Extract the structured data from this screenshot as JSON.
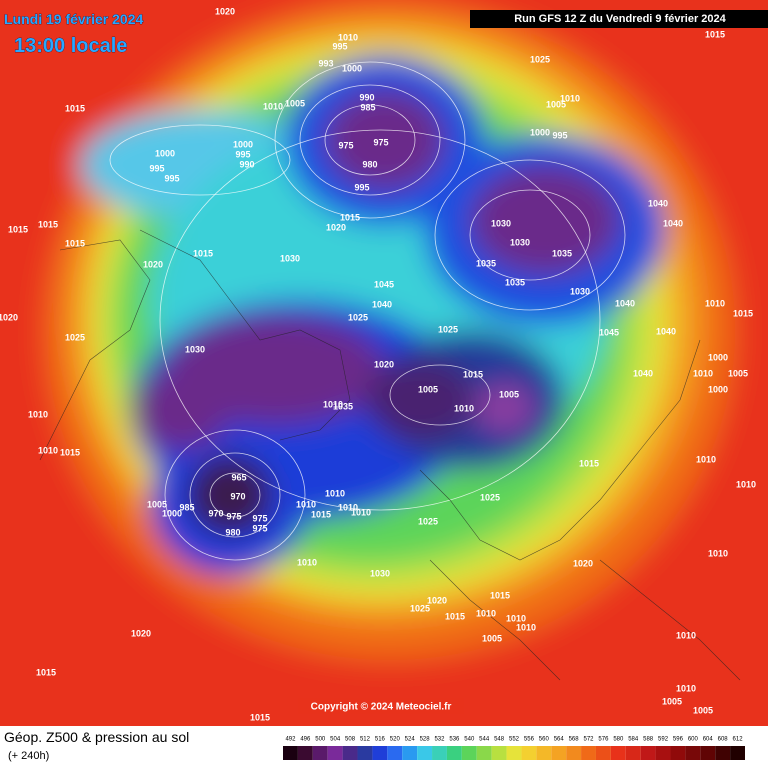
{
  "header": {
    "date": "Lundi 19 février 2024",
    "time": "13:00 locale",
    "run": "Run GFS 12 Z du Vendredi 9 février 2024",
    "copyright": "Copyright © 2024 Meteociel.fr"
  },
  "footer": {
    "title": "Géop. Z500 & pression au sol",
    "lead": "(+ 240h)"
  },
  "colorbar": [
    492,
    496,
    500,
    504,
    508,
    512,
    516,
    520,
    524,
    528,
    532,
    536,
    540,
    544,
    548,
    552,
    556,
    560,
    564,
    568,
    572,
    576,
    580,
    584,
    588,
    592,
    596,
    600,
    604,
    608,
    612
  ],
  "pressure_labels": [
    1020,
    1010,
    995,
    1015,
    1025,
    993,
    1000,
    1015,
    1010,
    1005,
    990,
    985,
    1010,
    1005,
    1000,
    995,
    975,
    975,
    980,
    1000,
    1000,
    995,
    990,
    995,
    995,
    995,
    1040,
    1015,
    1015,
    1015,
    1015,
    1020,
    1030,
    1030,
    1035,
    1035,
    1015,
    1030,
    1020,
    1040,
    1045,
    1035,
    1030,
    1040,
    1040,
    1010,
    1015,
    1020,
    1025,
    1025,
    1045,
    1040,
    1025,
    1030,
    1000,
    1020,
    1040,
    1010,
    1005,
    1015,
    1005,
    1000,
    1005,
    1010,
    1035,
    1010,
    1010,
    1010,
    1015,
    1010,
    1015,
    965,
    970,
    1010,
    1025,
    1005,
    985,
    1010,
    1010,
    1010,
    1000,
    970,
    975,
    975,
    975,
    1015,
    1010,
    1025,
    980,
    1010,
    1010,
    1030,
    1020,
    1015,
    1020,
    1025,
    1015,
    1010,
    1010,
    1010,
    1005,
    1020,
    1010,
    1015,
    1010,
    1005,
    1005,
    1015
  ]
}
